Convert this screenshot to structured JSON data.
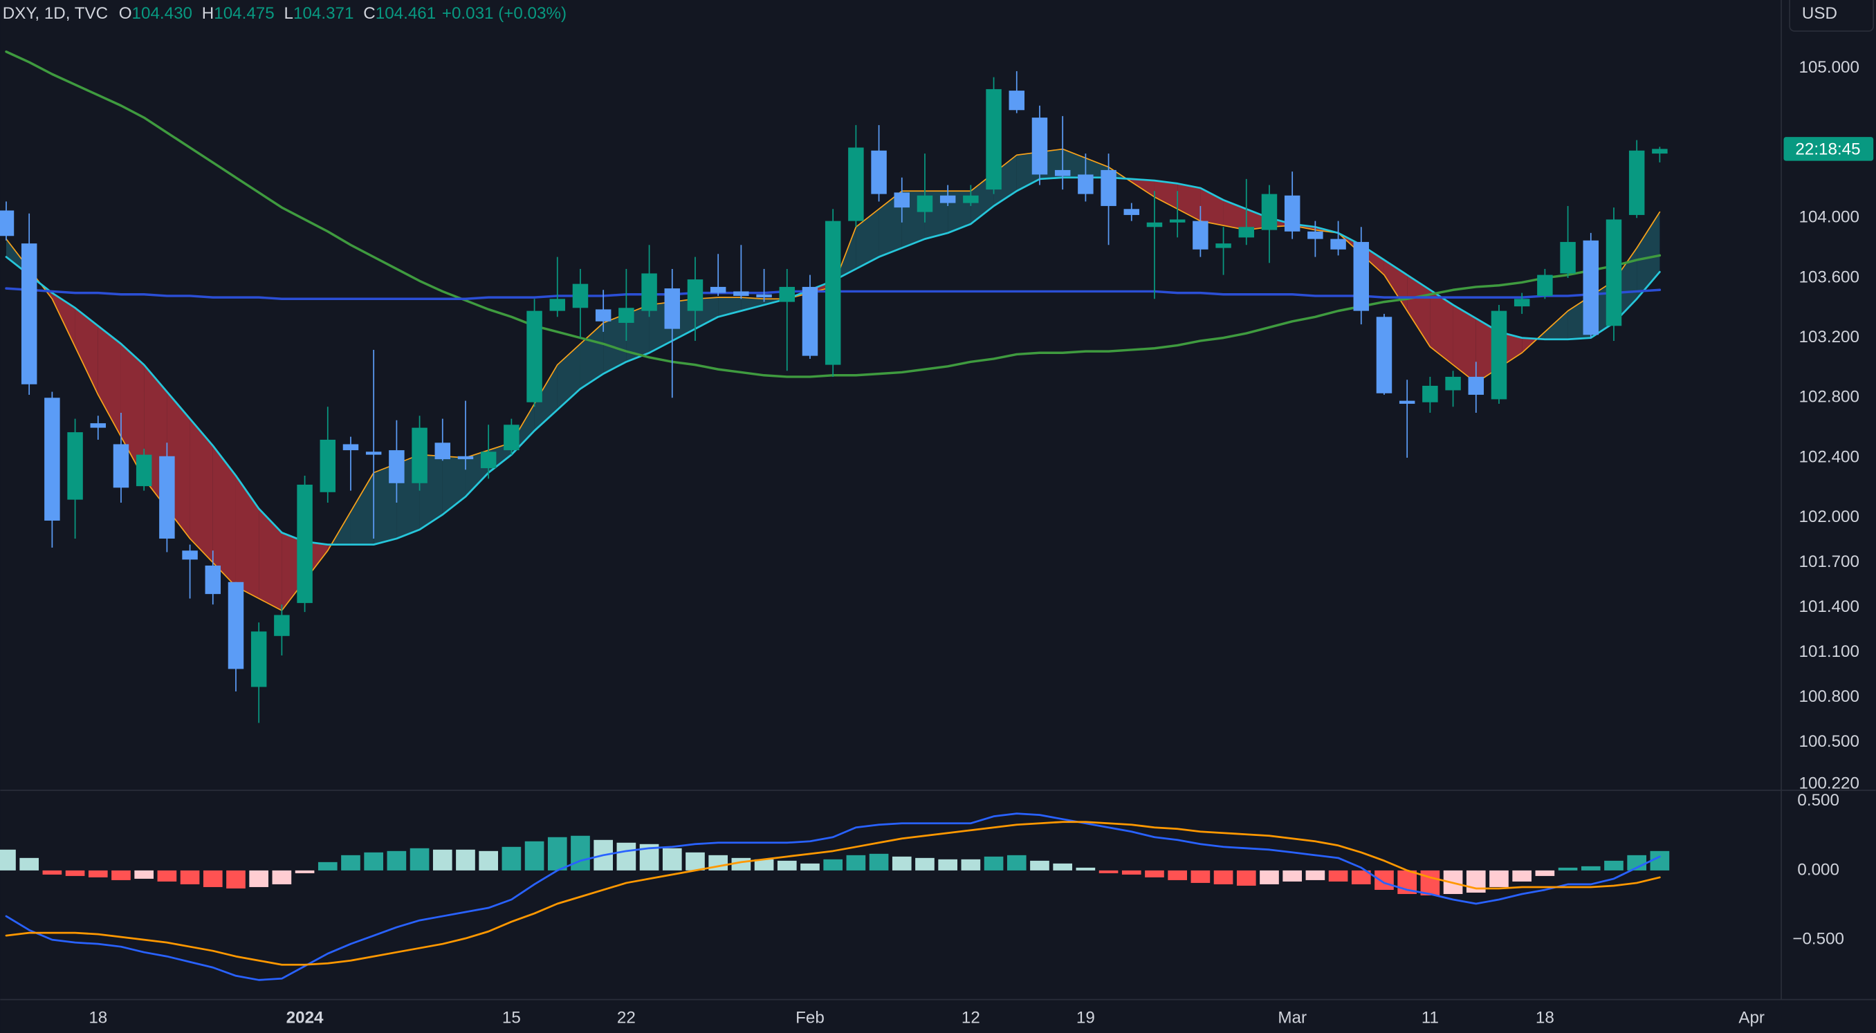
{
  "chart_data": [
    {
      "type": "candlestick",
      "title": "DXY, 1D, TVC",
      "ohlc_legend": [
        {
          "label": "O",
          "value": "104.430"
        },
        {
          "label": "H",
          "value": "104.475"
        },
        {
          "label": "L",
          "value": "104.371"
        },
        {
          "label": "C",
          "value": "104.461"
        }
      ],
      "change": "+0.031 (+0.03%)",
      "currency": "USD",
      "countdown": "22:18:45",
      "categories": [
        null,
        null,
        null,
        null,
        "18",
        null,
        null,
        null,
        null,
        null,
        null,
        null,
        null,
        "2024",
        null,
        null,
        null,
        null,
        null,
        null,
        null,
        null,
        "15",
        null,
        null,
        null,
        null,
        "22",
        null,
        null,
        null,
        null,
        null,
        null,
        null,
        "Feb",
        null,
        null,
        null,
        null,
        null,
        null,
        "12",
        null,
        null,
        null,
        null,
        "19",
        null,
        null,
        null,
        null,
        null,
        null,
        null,
        null,
        "Mar",
        null,
        null,
        null,
        null,
        null,
        "11",
        null,
        null,
        null,
        null,
        "18",
        null,
        null,
        null,
        null,
        null,
        null,
        null,
        null,
        "Apr"
      ],
      "open": [
        104.05,
        103.83,
        102.8,
        102.12,
        102.63,
        102.49,
        102.21,
        102.41,
        101.78,
        101.68,
        101.57,
        100.87,
        101.21,
        101.43,
        102.17,
        102.49,
        102.44,
        102.45,
        102.23,
        102.5,
        102.41,
        102.33,
        102.45,
        102.77,
        103.38,
        103.4,
        103.39,
        103.3,
        103.38,
        103.53,
        103.38,
        103.54,
        103.51,
        103.49,
        103.44,
        103.54,
        103.02,
        103.98,
        104.45,
        104.17,
        104.04,
        104.15,
        104.1,
        104.19,
        104.85,
        104.67,
        104.32,
        104.29,
        104.32,
        104.06,
        103.94,
        103.97,
        103.98,
        103.8,
        103.87,
        103.92,
        104.15,
        103.91,
        103.86,
        103.84,
        103.34,
        102.78,
        102.77,
        102.85,
        102.94,
        102.79,
        103.41,
        103.48,
        103.63,
        103.85,
        103.28,
        104.02,
        104.43,
        null,
        null,
        null,
        null
      ],
      "high": [
        104.11,
        104.03,
        102.84,
        102.66,
        102.68,
        102.7,
        102.46,
        102.5,
        101.82,
        101.78,
        101.57,
        101.3,
        101.42,
        102.28,
        102.74,
        102.54,
        103.12,
        102.65,
        102.68,
        102.66,
        102.78,
        102.62,
        102.66,
        103.46,
        103.74,
        103.66,
        103.52,
        103.66,
        103.82,
        103.66,
        103.74,
        103.76,
        103.82,
        103.66,
        103.66,
        103.62,
        104.06,
        104.62,
        104.62,
        104.27,
        104.43,
        104.22,
        104.22,
        104.94,
        104.98,
        104.75,
        104.68,
        104.43,
        104.43,
        104.1,
        104.18,
        104.18,
        104.08,
        103.94,
        104.26,
        104.22,
        104.31,
        103.98,
        103.98,
        103.94,
        103.36,
        102.92,
        102.94,
        102.98,
        103.04,
        103.42,
        103.5,
        103.66,
        104.08,
        103.9,
        104.07,
        104.52,
        104.475,
        null,
        null,
        null,
        null
      ],
      "low": [
        103.85,
        102.82,
        101.8,
        101.86,
        102.52,
        102.1,
        102.18,
        101.77,
        101.46,
        101.42,
        100.84,
        100.63,
        101.08,
        101.37,
        102.1,
        102.18,
        101.86,
        102.1,
        102.18,
        102.38,
        102.32,
        102.26,
        102.42,
        102.74,
        103.34,
        103.2,
        103.24,
        103.18,
        103.34,
        102.8,
        103.18,
        103.48,
        103.46,
        103.44,
        102.98,
        103.06,
        102.94,
        103.94,
        104.11,
        103.97,
        103.97,
        104.08,
        104.08,
        104.16,
        104.7,
        104.22,
        104.19,
        104.11,
        103.82,
        103.98,
        103.46,
        103.87,
        103.74,
        103.62,
        103.82,
        103.7,
        103.86,
        103.74,
        103.75,
        103.29,
        102.82,
        102.4,
        102.7,
        102.74,
        102.7,
        102.76,
        103.36,
        103.46,
        103.6,
        103.2,
        103.18,
        104.0,
        104.371,
        null,
        null,
        null,
        null
      ],
      "close": [
        103.88,
        102.89,
        101.98,
        102.57,
        102.6,
        102.2,
        102.42,
        101.86,
        101.72,
        101.49,
        100.99,
        101.24,
        101.35,
        102.22,
        102.52,
        102.45,
        102.42,
        102.23,
        102.6,
        102.39,
        102.39,
        102.44,
        102.62,
        103.38,
        103.46,
        103.56,
        103.31,
        103.4,
        103.63,
        103.26,
        103.59,
        103.5,
        103.48,
        103.47,
        103.54,
        103.08,
        103.98,
        104.47,
        104.16,
        104.07,
        104.15,
        104.1,
        104.15,
        104.86,
        104.72,
        104.29,
        104.28,
        104.16,
        104.08,
        104.02,
        103.97,
        103.99,
        103.79,
        103.83,
        103.94,
        104.16,
        103.91,
        103.86,
        103.79,
        103.38,
        102.83,
        102.76,
        102.88,
        102.94,
        102.82,
        103.38,
        103.46,
        103.62,
        103.84,
        103.22,
        103.99,
        104.45,
        104.461,
        null,
        null,
        null,
        null
      ],
      "up_color": "#089981",
      "down_color": "#5b9cf6",
      "ribbon_colors": {
        "up": "#1a4350",
        "down": "#8c2a35"
      },
      "series": [
        {
          "color": "#f7a21b",
          "values": [
            103.86,
            103.66,
            103.46,
            103.14,
            102.82,
            102.54,
            102.26,
            102.06,
            101.86,
            101.7,
            101.54,
            101.46,
            101.38,
            101.58,
            101.78,
            102.04,
            102.3,
            102.36,
            102.42,
            102.41,
            102.4,
            102.45,
            102.5,
            102.76,
            103.02,
            103.16,
            103.3,
            103.36,
            103.42,
            103.44,
            103.46,
            103.47,
            103.47,
            103.46,
            103.46,
            103.5,
            103.54,
            103.94,
            104.06,
            104.18,
            104.18,
            104.18,
            104.18,
            104.3,
            104.42,
            104.44,
            104.46,
            104.4,
            104.34,
            104.24,
            104.14,
            104.06,
            103.98,
            103.95,
            103.92,
            103.94,
            103.95,
            103.92,
            103.9,
            103.76,
            103.62,
            103.38,
            103.14,
            103.02,
            102.9,
            103.0,
            103.1,
            103.24,
            103.38,
            103.48,
            103.58,
            103.8,
            104.04,
            null,
            null,
            null,
            null
          ]
        },
        {
          "color": "#26c6da",
          "values": [
            103.74,
            103.62,
            103.5,
            103.4,
            103.28,
            103.16,
            103.02,
            102.84,
            102.66,
            102.48,
            102.28,
            102.06,
            101.9,
            101.84,
            101.82,
            101.82,
            101.82,
            101.86,
            101.92,
            102.02,
            102.14,
            102.3,
            102.42,
            102.58,
            102.72,
            102.86,
            102.96,
            103.04,
            103.1,
            103.18,
            103.26,
            103.34,
            103.38,
            103.42,
            103.46,
            103.52,
            103.58,
            103.66,
            103.74,
            103.8,
            103.86,
            103.9,
            103.96,
            104.08,
            104.18,
            104.26,
            104.27,
            104.27,
            104.27,
            104.26,
            104.25,
            104.23,
            104.2,
            104.12,
            104.06,
            104.0,
            103.96,
            103.94,
            103.9,
            103.82,
            103.72,
            103.62,
            103.52,
            103.42,
            103.33,
            103.24,
            103.2,
            103.19,
            103.19,
            103.2,
            103.3,
            103.46,
            103.64,
            null,
            null,
            null,
            null
          ]
        },
        {
          "color": "#3f9b3f",
          "values": [
            105.11,
            105.04,
            104.96,
            104.89,
            104.82,
            104.75,
            104.67,
            104.57,
            104.47,
            104.37,
            104.27,
            104.17,
            104.07,
            103.99,
            103.91,
            103.82,
            103.74,
            103.66,
            103.58,
            103.51,
            103.45,
            103.39,
            103.34,
            103.28,
            103.24,
            103.2,
            103.16,
            103.11,
            103.07,
            103.04,
            103.02,
            102.99,
            102.97,
            102.95,
            102.94,
            102.94,
            102.95,
            102.95,
            102.96,
            102.97,
            102.99,
            103.01,
            103.04,
            103.06,
            103.09,
            103.1,
            103.1,
            103.11,
            103.11,
            103.12,
            103.13,
            103.15,
            103.18,
            103.2,
            103.23,
            103.27,
            103.31,
            103.34,
            103.38,
            103.41,
            103.44,
            103.46,
            103.49,
            103.52,
            103.54,
            103.55,
            103.57,
            103.6,
            103.62,
            103.65,
            103.68,
            103.72,
            103.75,
            null,
            null,
            null,
            null
          ]
        },
        {
          "color": "#2b4fd6",
          "values": [
            103.53,
            103.52,
            103.51,
            103.5,
            103.5,
            103.49,
            103.49,
            103.48,
            103.48,
            103.47,
            103.47,
            103.47,
            103.46,
            103.46,
            103.46,
            103.46,
            103.46,
            103.46,
            103.46,
            103.46,
            103.46,
            103.47,
            103.47,
            103.47,
            103.48,
            103.48,
            103.48,
            103.49,
            103.49,
            103.49,
            103.5,
            103.5,
            103.5,
            103.5,
            103.51,
            103.51,
            103.51,
            103.51,
            103.51,
            103.51,
            103.51,
            103.51,
            103.51,
            103.51,
            103.51,
            103.51,
            103.51,
            103.51,
            103.51,
            103.51,
            103.51,
            103.5,
            103.5,
            103.49,
            103.49,
            103.49,
            103.49,
            103.48,
            103.48,
            103.48,
            103.47,
            103.47,
            103.47,
            103.47,
            103.47,
            103.47,
            103.47,
            103.48,
            103.48,
            103.49,
            103.5,
            103.51,
            103.52,
            null,
            null,
            null,
            null
          ]
        }
      ],
      "ylim": [
        100.188,
        105.455
      ],
      "yticks": [
        {
          "value": 105,
          "label": "105.000"
        },
        {
          "value": 104,
          "label": "104.000"
        },
        {
          "value": 103.6,
          "label": "103.600"
        },
        {
          "value": 103.2,
          "label": "103.200"
        },
        {
          "value": 102.8,
          "label": "102.800"
        },
        {
          "value": 102.4,
          "label": "102.400"
        },
        {
          "value": 102,
          "label": "102.000"
        },
        {
          "value": 101.7,
          "label": "101.700"
        },
        {
          "value": 101.4,
          "label": "101.400"
        },
        {
          "value": 101.1,
          "label": "101.100"
        },
        {
          "value": 100.8,
          "label": "100.800"
        },
        {
          "value": 100.5,
          "label": "100.500"
        },
        {
          "value": 100.22,
          "label": "100.220"
        }
      ],
      "grid": false
    },
    {
      "type": "macd",
      "histogram": [
        0.15,
        0.09,
        -0.03,
        -0.04,
        -0.05,
        -0.07,
        -0.06,
        -0.08,
        -0.1,
        -0.12,
        -0.13,
        -0.12,
        -0.1,
        -0.02,
        0.06,
        0.11,
        0.13,
        0.14,
        0.16,
        0.15,
        0.15,
        0.14,
        0.17,
        0.21,
        0.24,
        0.25,
        0.22,
        0.2,
        0.19,
        0.16,
        0.13,
        0.11,
        0.09,
        0.08,
        0.07,
        0.05,
        0.08,
        0.11,
        0.12,
        0.1,
        0.09,
        0.08,
        0.08,
        0.1,
        0.11,
        0.07,
        0.05,
        0.02,
        -0.02,
        -0.03,
        -0.05,
        -0.07,
        -0.09,
        -0.1,
        -0.11,
        -0.1,
        -0.08,
        -0.07,
        -0.08,
        -0.1,
        -0.14,
        -0.17,
        -0.18,
        -0.17,
        -0.16,
        -0.12,
        -0.08,
        -0.04,
        0.02,
        0.03,
        0.07,
        0.11,
        0.14,
        null,
        null,
        null,
        null
      ],
      "histogram_colors": {
        "grow_up": "#26a69a",
        "fall_up": "#b2dfdb",
        "grow_down": "#ffcdd2",
        "fall_down": "#ff5252"
      },
      "series": [
        {
          "color": "#2962ff",
          "values": [
            -0.33,
            -0.43,
            -0.5,
            -0.52,
            -0.53,
            -0.55,
            -0.59,
            -0.62,
            -0.66,
            -0.7,
            -0.76,
            -0.79,
            -0.78,
            -0.69,
            -0.6,
            -0.53,
            -0.47,
            -0.41,
            -0.36,
            -0.33,
            -0.3,
            -0.27,
            -0.21,
            -0.1,
            0.0,
            0.07,
            0.11,
            0.14,
            0.16,
            0.17,
            0.19,
            0.2,
            0.2,
            0.2,
            0.2,
            0.21,
            0.24,
            0.31,
            0.33,
            0.34,
            0.34,
            0.34,
            0.34,
            0.39,
            0.41,
            0.4,
            0.37,
            0.34,
            0.31,
            0.28,
            0.24,
            0.22,
            0.19,
            0.17,
            0.16,
            0.15,
            0.13,
            0.11,
            0.09,
            0.02,
            -0.09,
            -0.14,
            -0.17,
            -0.21,
            -0.24,
            -0.21,
            -0.17,
            -0.14,
            -0.1,
            -0.1,
            -0.06,
            0.02,
            0.1,
            null,
            null,
            null,
            null
          ]
        },
        {
          "color": "#ff9800",
          "values": [
            -0.47,
            -0.45,
            -0.45,
            -0.45,
            -0.46,
            -0.48,
            -0.5,
            -0.52,
            -0.55,
            -0.58,
            -0.62,
            -0.65,
            -0.68,
            -0.68,
            -0.67,
            -0.65,
            -0.62,
            -0.59,
            -0.56,
            -0.53,
            -0.49,
            -0.44,
            -0.37,
            -0.31,
            -0.24,
            -0.19,
            -0.14,
            -0.09,
            -0.06,
            -0.03,
            0.0,
            0.03,
            0.06,
            0.08,
            0.1,
            0.12,
            0.14,
            0.17,
            0.2,
            0.23,
            0.25,
            0.27,
            0.29,
            0.31,
            0.33,
            0.34,
            0.35,
            0.35,
            0.34,
            0.33,
            0.31,
            0.3,
            0.28,
            0.27,
            0.26,
            0.25,
            0.23,
            0.21,
            0.18,
            0.13,
            0.07,
            0.0,
            -0.05,
            -0.09,
            -0.13,
            -0.13,
            -0.12,
            -0.12,
            -0.12,
            -0.12,
            -0.11,
            -0.09,
            -0.05,
            null,
            null,
            null,
            null
          ]
        }
      ],
      "ylim": [
        -0.931,
        0.578
      ],
      "yticks": [
        {
          "value": 0.5,
          "label": "0.500"
        },
        {
          "value": 0,
          "label": "0.000"
        },
        {
          "value": -0.5,
          "label": "−0.500"
        }
      ]
    }
  ]
}
